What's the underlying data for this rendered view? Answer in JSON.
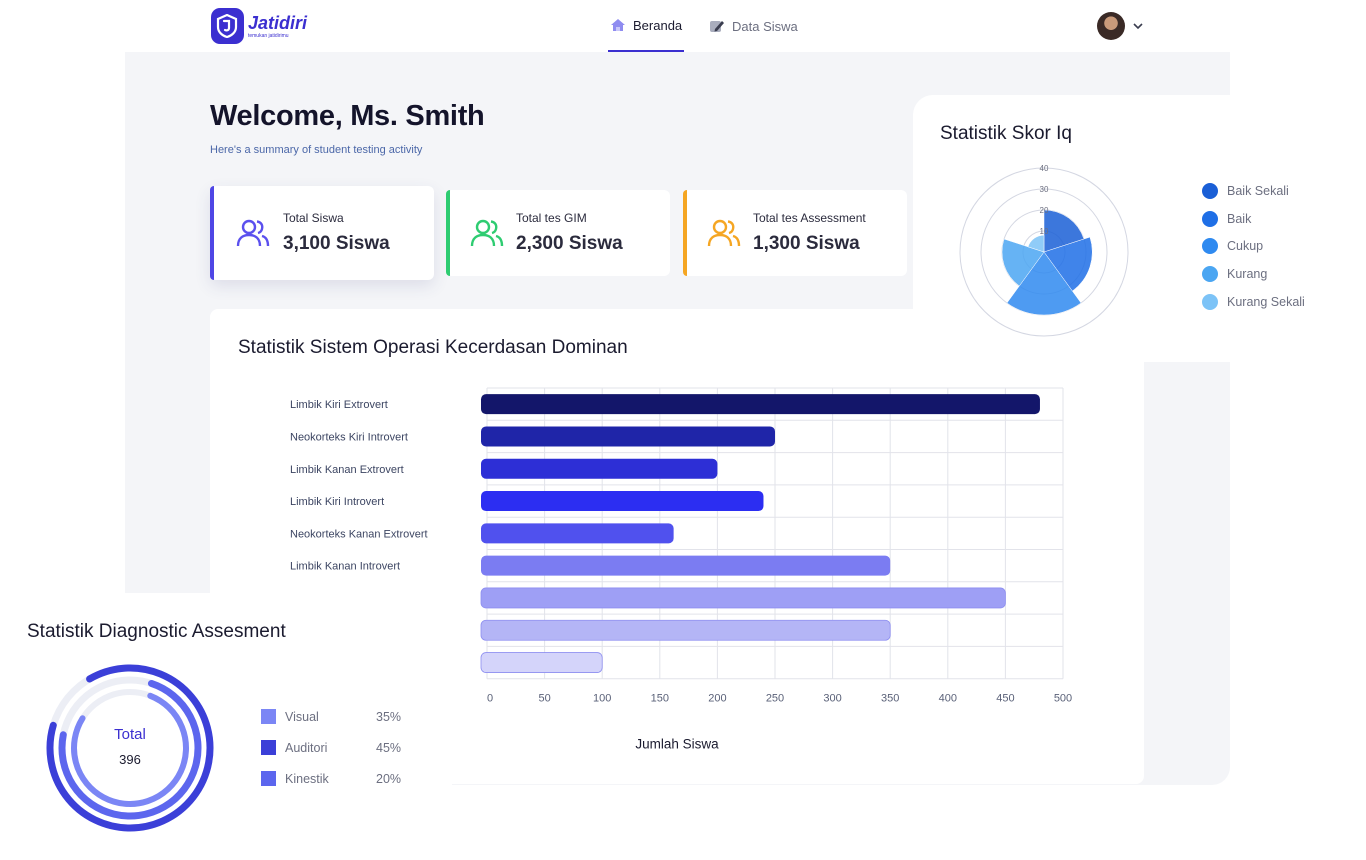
{
  "app": {
    "name": "Jatidiri",
    "tagline": "temukan jatidirimu"
  },
  "nav": {
    "tabs": [
      {
        "label": "Beranda",
        "icon": "home-icon",
        "active": true
      },
      {
        "label": "Data Siswa",
        "icon": "edit-icon",
        "active": false
      }
    ]
  },
  "user": {
    "avatar": "avatar",
    "menu_icon": "chevron-down-icon"
  },
  "welcome": {
    "title": "Welcome, Ms. Smith",
    "subtitle": "Here's a summary of student testing activity"
  },
  "stats": [
    {
      "label": "Total Siswa",
      "value": "3,100 Siswa",
      "accent": "#4f46e5",
      "icon": "users-icon"
    },
    {
      "label": "Total tes GIM",
      "value": "2,300 Siswa",
      "accent": "#2ecc71",
      "icon": "users-icon"
    },
    {
      "label": "Total tes Assessment",
      "value": "1,300 Siswa",
      "accent": "#f5a623",
      "icon": "users-icon"
    }
  ],
  "bar_chart": {
    "title": "Statistik Sistem Operasi Kecerdasan Dominan",
    "xlabel": "Jumlah Siswa"
  },
  "iq_chart": {
    "title": "Statistik Skor Iq",
    "legend": [
      {
        "label": "Baik Sekali",
        "color": "#1a5fd6"
      },
      {
        "label": "Baik",
        "color": "#1f6fe6"
      },
      {
        "label": "Cukup",
        "color": "#2f8af0"
      },
      {
        "label": "Kurang",
        "color": "#4ba6f2"
      },
      {
        "label": "Kurang Sekali",
        "color": "#7cc3f7"
      }
    ]
  },
  "diagnostic": {
    "title": "Statistik Diagnostic Assesment",
    "total_label": "Total",
    "total_value": "396",
    "items": [
      {
        "label": "Visual",
        "percent": "35%",
        "color": "#7b86f5"
      },
      {
        "label": "Auditori",
        "percent": "45%",
        "color": "#3b3fd8"
      },
      {
        "label": "Kinestik",
        "percent": "20%",
        "color": "#5c66ee"
      }
    ]
  },
  "chart_data": [
    {
      "type": "bar",
      "orientation": "horizontal",
      "title": "Statistik Sistem Operasi Kecerdasan Dominan",
      "xlabel": "Jumlah Siswa",
      "ylabel": "",
      "categories": [
        "Limbik Kiri Extrovert",
        "Neokorteks Kiri Introvert",
        "Limbik Kanan Extrovert",
        "Limbik Kiri Introvert",
        "Neokorteks Kanan Extrovert",
        "Limbik Kanan Introvert",
        "",
        "",
        ""
      ],
      "values": [
        480,
        250,
        200,
        240,
        162,
        350,
        450,
        350,
        100
      ],
      "colors": [
        "#13166a",
        "#1f25a8",
        "#2d2fd6",
        "#2c2ef2",
        "#5051ee",
        "#7b7cf2",
        "#9e9ff5",
        "#b4b5f6",
        "#d4d4fa"
      ],
      "xlim": [
        0,
        500
      ],
      "xticks": [
        0,
        50,
        100,
        150,
        200,
        250,
        300,
        350,
        400,
        450,
        500
      ],
      "grid": true
    },
    {
      "type": "polar-area",
      "title": "Statistik Skor Iq",
      "categories": [
        "Baik Sekali",
        "Baik",
        "Cukup",
        "Kurang",
        "Kurang Sekali"
      ],
      "values": [
        20,
        23,
        30,
        20,
        8
      ],
      "rlim": [
        0,
        40
      ],
      "rticks": [
        10,
        20,
        30,
        40
      ],
      "legend_position": "right"
    },
    {
      "type": "radial-bar",
      "title": "Statistik Diagnostic Assesment",
      "total": 396,
      "categories": [
        "Visual",
        "Auditori",
        "Kinestik"
      ],
      "values": [
        35,
        45,
        20
      ],
      "unit": "%"
    }
  ]
}
